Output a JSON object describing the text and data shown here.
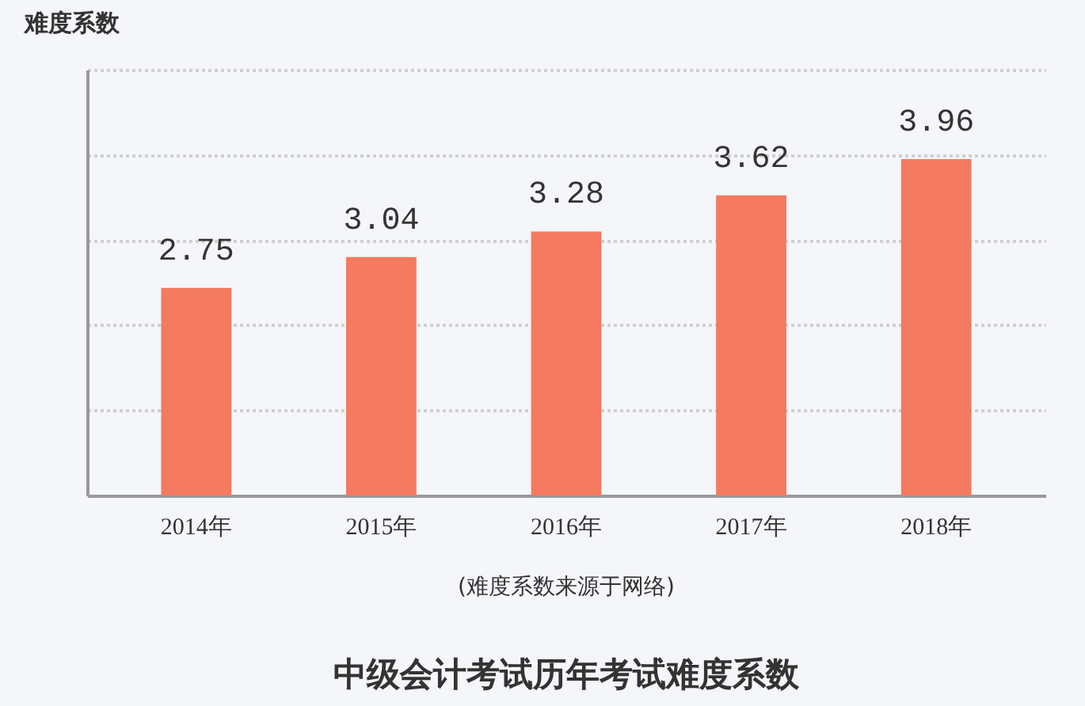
{
  "chart_data": {
    "type": "bar",
    "title": "中级会计考试历年考试难度系数",
    "ylabel": "难度系数",
    "categories": [
      "2014年",
      "2015年",
      "2016年",
      "2017年",
      "2018年"
    ],
    "series": [
      {
        "color": "#f47a60",
        "values": [
          2.75,
          3.04,
          3.28,
          3.62,
          3.96
        ]
      }
    ],
    "data_labels": true,
    "ylim": [
      0.8,
      4.8
    ],
    "yticks": [
      {
        "value": 1.6,
        "label": null
      },
      {
        "value": 2.4,
        "label": null
      },
      {
        "value": 3.2,
        "label": null
      },
      {
        "value": 4.0,
        "label": null
      },
      {
        "value": 4.8,
        "label": null
      }
    ],
    "grid": "y",
    "tick_labels": "x",
    "annotations": [
      "(难度系数来源于网络)"
    ]
  }
}
